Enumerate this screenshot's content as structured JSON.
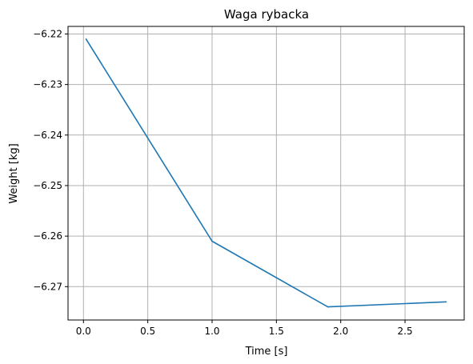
{
  "chart_data": {
    "type": "line",
    "title": "Waga rybacka",
    "xlabel": "Time [s]",
    "ylabel": "Weight [kg]",
    "xlim": [
      -0.12,
      2.96
    ],
    "ylim": [
      -6.2766,
      -6.2185
    ],
    "grid": true,
    "xticks": [
      "0.0",
      "0.5",
      "1.0",
      "1.5",
      "2.0",
      "2.5"
    ],
    "xtick_values": [
      0.0,
      0.5,
      1.0,
      1.5,
      2.0,
      2.5
    ],
    "yticks": [
      "−6.22",
      "−6.23",
      "−6.24",
      "−6.25",
      "−6.26",
      "−6.27"
    ],
    "ytick_values": [
      -6.22,
      -6.23,
      -6.24,
      -6.25,
      -6.26,
      -6.27
    ],
    "series": [
      {
        "color": "#1f77b4",
        "x": [
          0.02,
          1.0,
          1.9,
          2.82
        ],
        "y": [
          -6.221,
          -6.261,
          -6.274,
          -6.273
        ]
      }
    ]
  }
}
